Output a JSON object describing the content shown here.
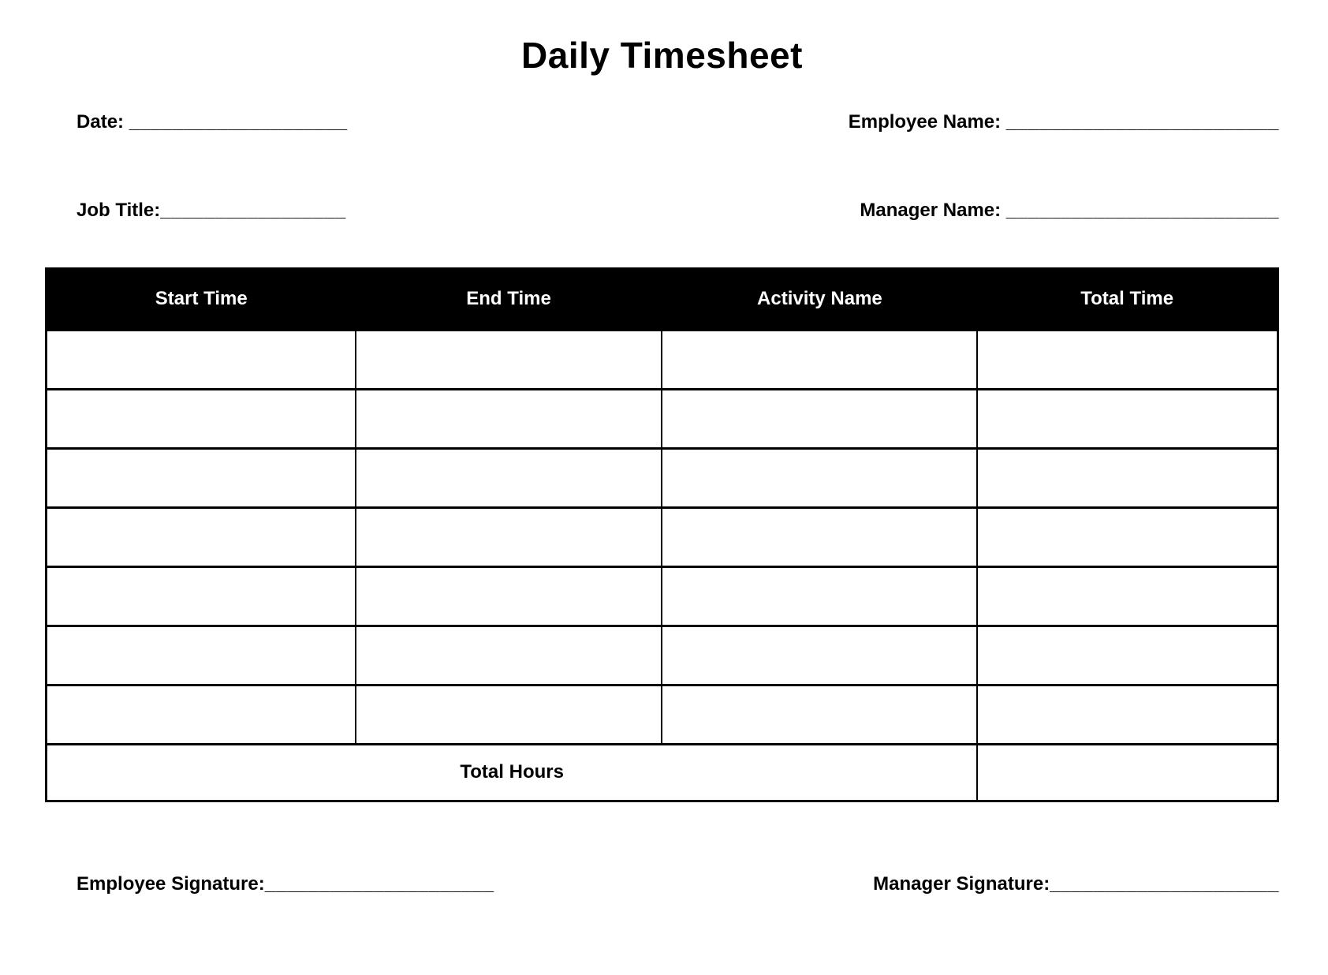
{
  "title": "Daily Timesheet",
  "fields": {
    "date": {
      "label": "Date: ",
      "line": "____________________"
    },
    "employee_name": {
      "label": "Employee Name: ",
      "line": "_________________________"
    },
    "job_title": {
      "label": "Job Title:",
      "line": "_________________"
    },
    "manager_name": {
      "label": "Manager Name: ",
      "line": "_________________________"
    }
  },
  "table": {
    "headers": [
      "Start Time",
      "End Time",
      "Activity Name",
      "Total Time"
    ],
    "rows": [
      [
        "",
        "",
        "",
        ""
      ],
      [
        "",
        "",
        "",
        ""
      ],
      [
        "",
        "",
        "",
        ""
      ],
      [
        "",
        "",
        "",
        ""
      ],
      [
        "",
        "",
        "",
        ""
      ],
      [
        "",
        "",
        "",
        ""
      ],
      [
        "",
        "",
        "",
        ""
      ]
    ],
    "footer": {
      "label": "Total Hours",
      "total_value": ""
    }
  },
  "signatures": {
    "employee": {
      "label": "Employee Signature:",
      "line": "_____________________"
    },
    "manager": {
      "label": "Manager Signature:",
      "line": "_____________________"
    }
  },
  "colors": {
    "page_bg": "#ffffff",
    "text": "#000000",
    "border": "#000000",
    "header_bg": "#000000",
    "header_text": "#ffffff"
  }
}
